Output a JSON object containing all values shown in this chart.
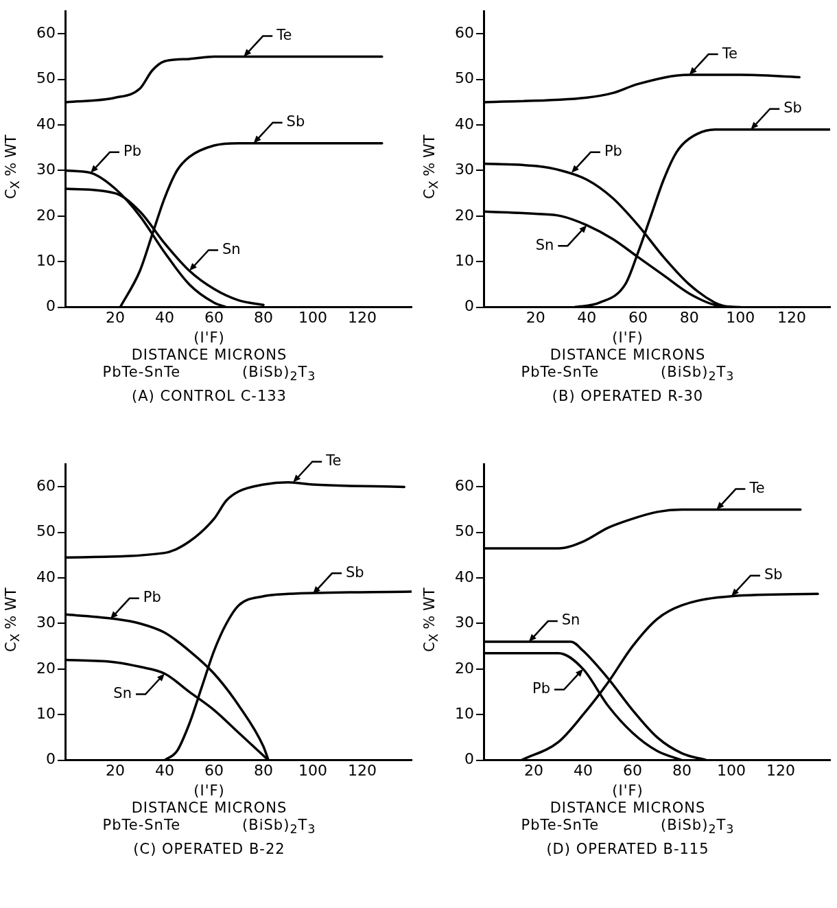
{
  "chart_data": [
    {
      "type": "line",
      "title": "(A) CONTROL C-133",
      "xlabel": "DISTANCE MICRONS",
      "ylabel": "C$_{X}$ % WT",
      "xlim": [
        0,
        140
      ],
      "ylim": [
        0,
        65
      ],
      "xticks": [
        20,
        40,
        60,
        80,
        100,
        120
      ],
      "yticks": [
        0,
        10,
        20,
        30,
        40,
        50,
        60
      ],
      "grid": false,
      "legend": false,
      "marker": "none",
      "line_style": "solid",
      "series": [
        {
          "color": "#000000",
          "x": [
            0,
            20,
            30,
            35,
            40,
            50,
            60,
            128
          ],
          "values": [
            45,
            46,
            48,
            52,
            54,
            54.5,
            55,
            55
          ]
        },
        {
          "color": "#000000",
          "x": [
            22,
            30,
            35,
            40,
            45,
            50,
            60,
            70,
            128
          ],
          "values": [
            0,
            8,
            16,
            24,
            30,
            33,
            35.5,
            36,
            36
          ]
        },
        {
          "color": "#000000",
          "x": [
            0,
            10,
            20,
            30,
            40,
            50,
            60,
            65
          ],
          "values": [
            30,
            29.5,
            26,
            20,
            12,
            5,
            1,
            0
          ]
        },
        {
          "color": "#000000",
          "x": [
            0,
            20,
            30,
            40,
            50,
            60,
            70,
            80
          ],
          "values": [
            26,
            25,
            21,
            14,
            8,
            4,
            1.5,
            0.5
          ]
        }
      ],
      "annotations": [
        {
          "text": "Te",
          "x": 72,
          "y": 55
        },
        {
          "text": "Sb",
          "x": 76,
          "y": 36
        },
        {
          "text": "Pb",
          "x": 10,
          "y": 29.5
        },
        {
          "text": "Sn",
          "x": 50,
          "y": 8
        },
        "(I'F)",
        "PbTe-SnTe",
        "(BiSb)$_{2}$T$_{3}$"
      ]
    },
    {
      "type": "line",
      "title": "(B) OPERATED R-30",
      "xlabel": "DISTANCE MICRONS",
      "ylabel": "C$_{X}$ % WT",
      "xlim": [
        0,
        135
      ],
      "ylim": [
        0,
        65
      ],
      "xticks": [
        20,
        40,
        60,
        80,
        100,
        120
      ],
      "yticks": [
        0,
        10,
        20,
        30,
        40,
        50,
        60
      ],
      "grid": false,
      "legend": false,
      "marker": "none",
      "line_style": "solid",
      "series": [
        {
          "color": "#000000",
          "x": [
            0,
            40,
            50,
            60,
            80,
            100,
            123
          ],
          "values": [
            45,
            46,
            47,
            49,
            51,
            51,
            50.5
          ]
        },
        {
          "color": "#000000",
          "x": [
            35,
            45,
            55,
            60,
            65,
            70,
            75,
            80,
            90,
            100,
            135
          ],
          "values": [
            0,
            1,
            5,
            12,
            20,
            28,
            34,
            37,
            39,
            39,
            39
          ]
        },
        {
          "color": "#000000",
          "x": [
            0,
            20,
            30,
            40,
            50,
            60,
            70,
            80,
            90,
            95
          ],
          "values": [
            31.5,
            31,
            30,
            28,
            24,
            18,
            11,
            5,
            1,
            0
          ]
        },
        {
          "color": "#000000",
          "x": [
            0,
            20,
            30,
            40,
            50,
            60,
            70,
            80,
            90,
            100
          ],
          "values": [
            21,
            20.5,
            20,
            18,
            15,
            11,
            7,
            3,
            0.5,
            0
          ]
        }
      ],
      "annotations": [
        {
          "text": "Te",
          "x": 80,
          "y": 51
        },
        {
          "text": "Sb",
          "x": 104,
          "y": 39
        },
        {
          "text": "Pb",
          "x": 34,
          "y": 29.5
        },
        {
          "text": "Sn",
          "x": 40,
          "y": 18
        },
        "(I'F)",
        "PbTe-SnTe",
        "(BiSb)$_{2}$T$_{3}$"
      ]
    },
    {
      "type": "line",
      "title": "(C) OPERATED B-22",
      "xlabel": "DISTANCE MICRONS",
      "ylabel": "C$_{X}$ % WT",
      "xlim": [
        0,
        140
      ],
      "ylim": [
        0,
        65
      ],
      "xticks": [
        20,
        40,
        60,
        80,
        100,
        120
      ],
      "yticks": [
        0,
        10,
        20,
        30,
        40,
        50,
        60
      ],
      "grid": false,
      "legend": false,
      "marker": "none",
      "line_style": "solid",
      "series": [
        {
          "color": "#000000",
          "x": [
            0,
            40,
            50,
            60,
            65,
            70,
            80,
            90,
            100,
            137
          ],
          "values": [
            44.5,
            45.5,
            48,
            53,
            57,
            59,
            60.5,
            61,
            60.5,
            60
          ]
        },
        {
          "color": "#000000",
          "x": [
            40,
            45,
            50,
            55,
            60,
            65,
            70,
            80,
            90,
            140
          ],
          "values": [
            0,
            2,
            8,
            16,
            24,
            30,
            34,
            36,
            36.5,
            37
          ]
        },
        {
          "color": "#000000",
          "x": [
            0,
            20,
            30,
            40,
            50,
            60,
            70,
            80,
            82
          ],
          "values": [
            32,
            31,
            30,
            28,
            24,
            19,
            12,
            3,
            0
          ]
        },
        {
          "color": "#000000",
          "x": [
            0,
            20,
            30,
            40,
            50,
            60,
            70,
            80,
            82
          ],
          "values": [
            22,
            21.5,
            20.5,
            19,
            15,
            11,
            6,
            1,
            0
          ]
        }
      ],
      "annotations": [
        {
          "text": "Te",
          "x": 92,
          "y": 61
        },
        {
          "text": "Sb",
          "x": 100,
          "y": 36.5
        },
        {
          "text": "Pb",
          "x": 18,
          "y": 31
        },
        {
          "text": "Sn",
          "x": 40,
          "y": 19
        },
        "(I'F)",
        "PbTe-SnTe",
        "(BiSb)$_{2}$T$_{3}$"
      ]
    },
    {
      "type": "line",
      "title": "(D) OPERATED B-115",
      "xlabel": "DISTANCE MICRONS",
      "ylabel": "C$_{X}$ % WT",
      "xlim": [
        0,
        140
      ],
      "ylim": [
        0,
        65
      ],
      "xticks": [
        20,
        40,
        60,
        80,
        100,
        120
      ],
      "yticks": [
        0,
        10,
        20,
        30,
        40,
        50,
        60
      ],
      "grid": false,
      "legend": false,
      "marker": "none",
      "line_style": "solid",
      "series": [
        {
          "color": "#000000",
          "x": [
            0,
            30,
            40,
            50,
            60,
            70,
            80,
            128
          ],
          "values": [
            46.5,
            46.5,
            48,
            51,
            53,
            54.5,
            55,
            55
          ]
        },
        {
          "color": "#000000",
          "x": [
            15,
            30,
            40,
            50,
            60,
            70,
            80,
            100,
            135
          ],
          "values": [
            0,
            4,
            10,
            17,
            25,
            31,
            34,
            36,
            36.5
          ]
        },
        {
          "color": "#000000",
          "x": [
            0,
            35,
            40,
            50,
            60,
            70,
            80,
            90
          ],
          "values": [
            26,
            26,
            24,
            18,
            11,
            5,
            1.5,
            0
          ]
        },
        {
          "color": "#000000",
          "x": [
            0,
            30,
            40,
            50,
            60,
            70,
            80
          ],
          "values": [
            23.5,
            23.5,
            20,
            12,
            6,
            2,
            0
          ]
        }
      ],
      "annotations": [
        {
          "text": "Te",
          "x": 94,
          "y": 55
        },
        {
          "text": "Sb",
          "x": 100,
          "y": 36
        },
        {
          "text": "Sn",
          "x": 18,
          "y": 26
        },
        {
          "text": "Pb",
          "x": 40,
          "y": 20
        },
        "(I'F)",
        "PbTe-SnTe",
        "(BiSb)$_{2}$T$_{3}$"
      ]
    }
  ]
}
